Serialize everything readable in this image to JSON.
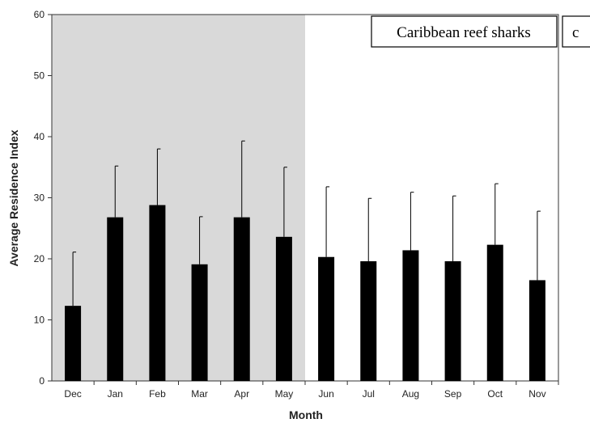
{
  "chart_data": {
    "type": "bar",
    "title": "Caribbean reef sharks",
    "panel_letter": "c",
    "xlabel": "Month",
    "ylabel": "Average Residence Index",
    "categories": [
      "Dec",
      "Jan",
      "Feb",
      "Mar",
      "Apr",
      "May",
      "Jun",
      "Jul",
      "Aug",
      "Sep",
      "Oct",
      "Nov"
    ],
    "values": [
      12.3,
      26.8,
      28.8,
      19.1,
      26.8,
      23.6,
      20.3,
      19.6,
      21.4,
      19.6,
      22.3,
      16.5
    ],
    "error_upper": [
      21.1,
      35.2,
      38.0,
      26.9,
      39.3,
      35.0,
      31.8,
      29.9,
      30.9,
      30.3,
      32.3,
      27.8
    ],
    "ylim": [
      0,
      60
    ],
    "yticks": [
      0,
      10,
      20,
      30,
      40,
      50,
      60
    ],
    "shaded_categories": [
      "Dec",
      "Jan",
      "Feb",
      "Mar",
      "Apr",
      "May"
    ],
    "shade_color": "#d9d9d9",
    "bar_color": "#000000",
    "grid": false,
    "legend": "none"
  }
}
